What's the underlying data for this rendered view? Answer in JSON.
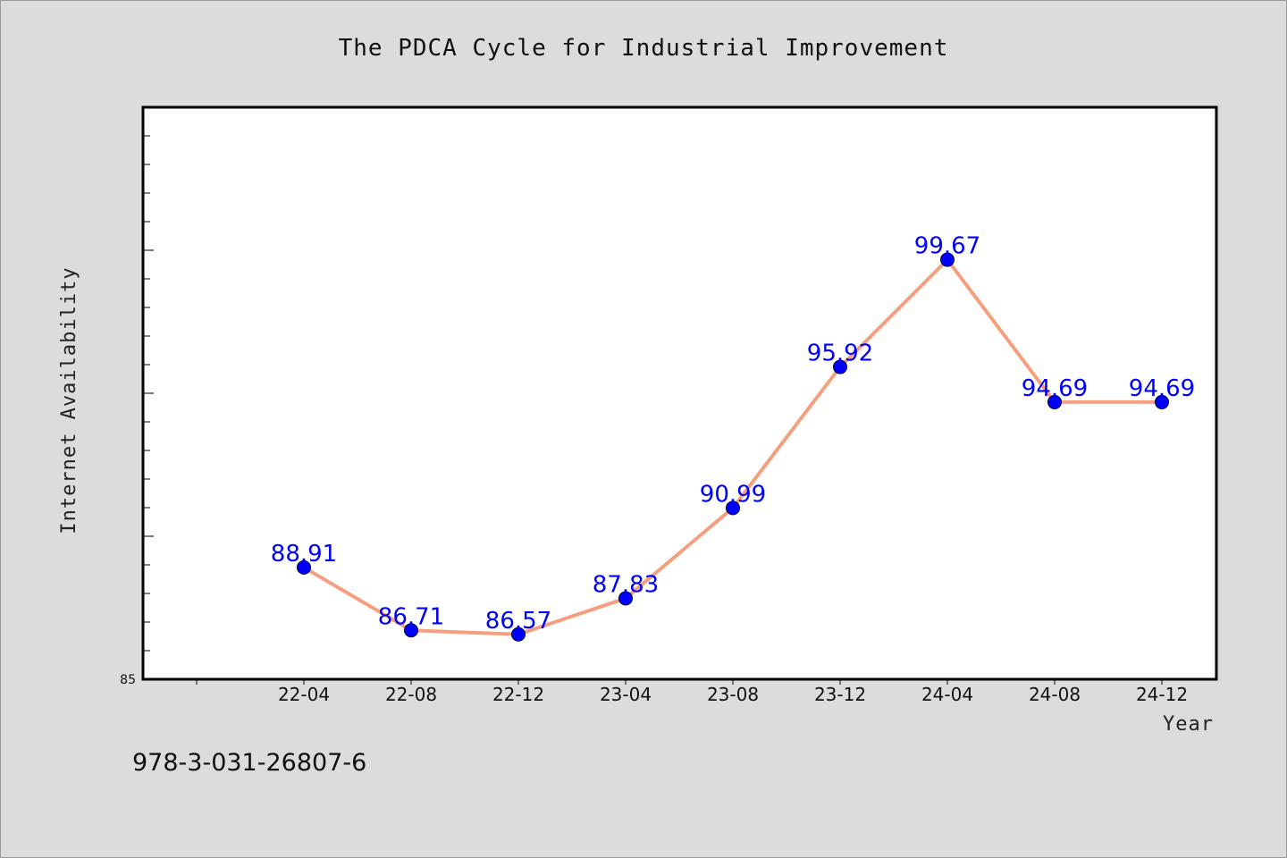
{
  "chart_data": {
    "type": "line",
    "title": "The PDCA Cycle for Industrial Improvement",
    "xlabel": "Year",
    "ylabel": "Internet Availability",
    "categories": [
      "22-04",
      "22-08",
      "22-12",
      "23-04",
      "23-08",
      "23-12",
      "24-04",
      "24-08",
      "24-12"
    ],
    "series": [
      {
        "values": [
          88.91,
          86.71,
          86.57,
          87.83,
          90.99,
          95.92,
          99.67,
          94.69,
          94.69
        ]
      }
    ],
    "data_labels": [
      "88.91",
      "86.71",
      "86.57",
      "87.83",
      "90.99",
      "95.92",
      "99.67",
      "94.69",
      "94.69"
    ],
    "y_tick_labels": [
      {
        "value": 85,
        "label": "85"
      }
    ],
    "ylim": [
      85,
      105
    ],
    "grid": false,
    "legend": "none",
    "colors": {
      "line": "#f4a07e",
      "marker": "#0000ff",
      "label": "#0000ff"
    }
  },
  "footnote": "978-3-031-26807-6"
}
